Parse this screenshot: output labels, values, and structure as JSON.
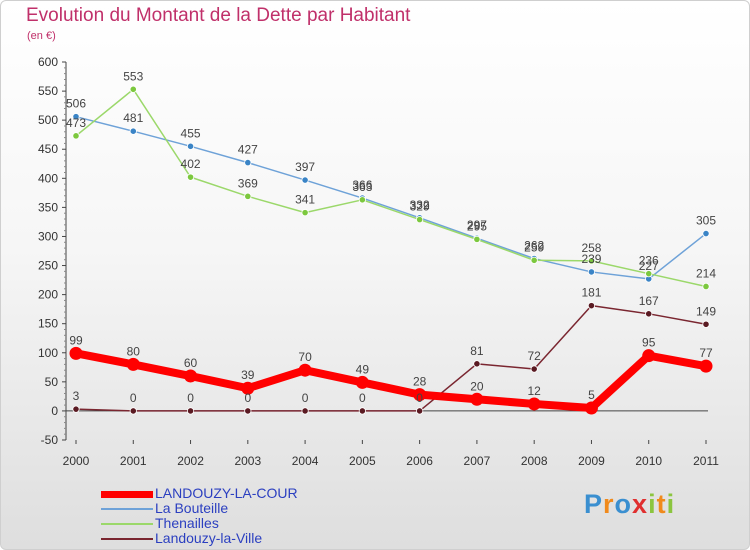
{
  "chart_data": {
    "type": "line",
    "title": "Evolution du Montant de la Dette par Habitant",
    "unit": "(en €)",
    "xlabel": "",
    "ylabel": "",
    "ylim": [
      -50,
      600
    ],
    "y_ticks": [
      -50,
      0,
      50,
      100,
      150,
      200,
      250,
      300,
      350,
      400,
      450,
      500,
      550,
      600
    ],
    "categories": [
      "2000",
      "2001",
      "2002",
      "2003",
      "2004",
      "2005",
      "2006",
      "2007",
      "2008",
      "2009",
      "2010",
      "2011"
    ],
    "grid": false,
    "legend_position": "bottom-left",
    "series": [
      {
        "name": "La Bouteille",
        "color": "#6ea2d8",
        "marker": "#3a84c6",
        "values": [
          506,
          481,
          455,
          427,
          397,
          366,
          332,
          297,
          262,
          239,
          227,
          305
        ],
        "labels": [
          "506",
          "481",
          "455",
          "427",
          "397",
          "366",
          "332",
          "297",
          "262",
          "239",
          "227",
          "305"
        ]
      },
      {
        "name": "Thenailles",
        "color": "#9bd86a",
        "marker": "#7cc83e",
        "values": [
          473,
          553,
          402,
          369,
          341,
          363,
          329,
          295,
          259,
          258,
          236,
          214
        ],
        "labels": [
          "473",
          "553",
          "402",
          "369",
          "341",
          "363",
          "329",
          "295",
          "259",
          "258",
          "236",
          "214"
        ]
      },
      {
        "name": "Landouzy-la-Ville",
        "color": "#7a2630",
        "marker": "#5a1a22",
        "values": [
          3,
          0,
          0,
          0,
          0,
          0,
          0,
          81,
          72,
          181,
          167,
          149
        ],
        "labels": [
          "3",
          "0",
          "0",
          "0",
          "0",
          "0",
          "0",
          "81",
          "72",
          "181",
          "167",
          "149"
        ]
      },
      {
        "name": "LANDOUZY-LA-COUR",
        "color": "#ff0000",
        "marker": "#ff0000",
        "values": [
          99,
          80,
          60,
          39,
          70,
          49,
          28,
          20,
          12,
          5,
          95,
          77
        ],
        "labels": [
          "99",
          "80",
          "60",
          "39",
          "70",
          "49",
          "28",
          "20",
          "12",
          "5",
          "95",
          "77"
        ]
      }
    ],
    "legend": [
      {
        "name": "LANDOUZY-LA-COUR",
        "color": "#ff0000"
      },
      {
        "name": "La Bouteille",
        "color": "#6ea2d8"
      },
      {
        "name": "Thenailles",
        "color": "#9bd86a"
      },
      {
        "name": "Landouzy-la-Ville",
        "color": "#7a2630"
      }
    ]
  },
  "logo": {
    "text": "Proxiti",
    "letters": [
      "P",
      "r",
      "o",
      "x",
      "i",
      "t",
      "i"
    ]
  }
}
